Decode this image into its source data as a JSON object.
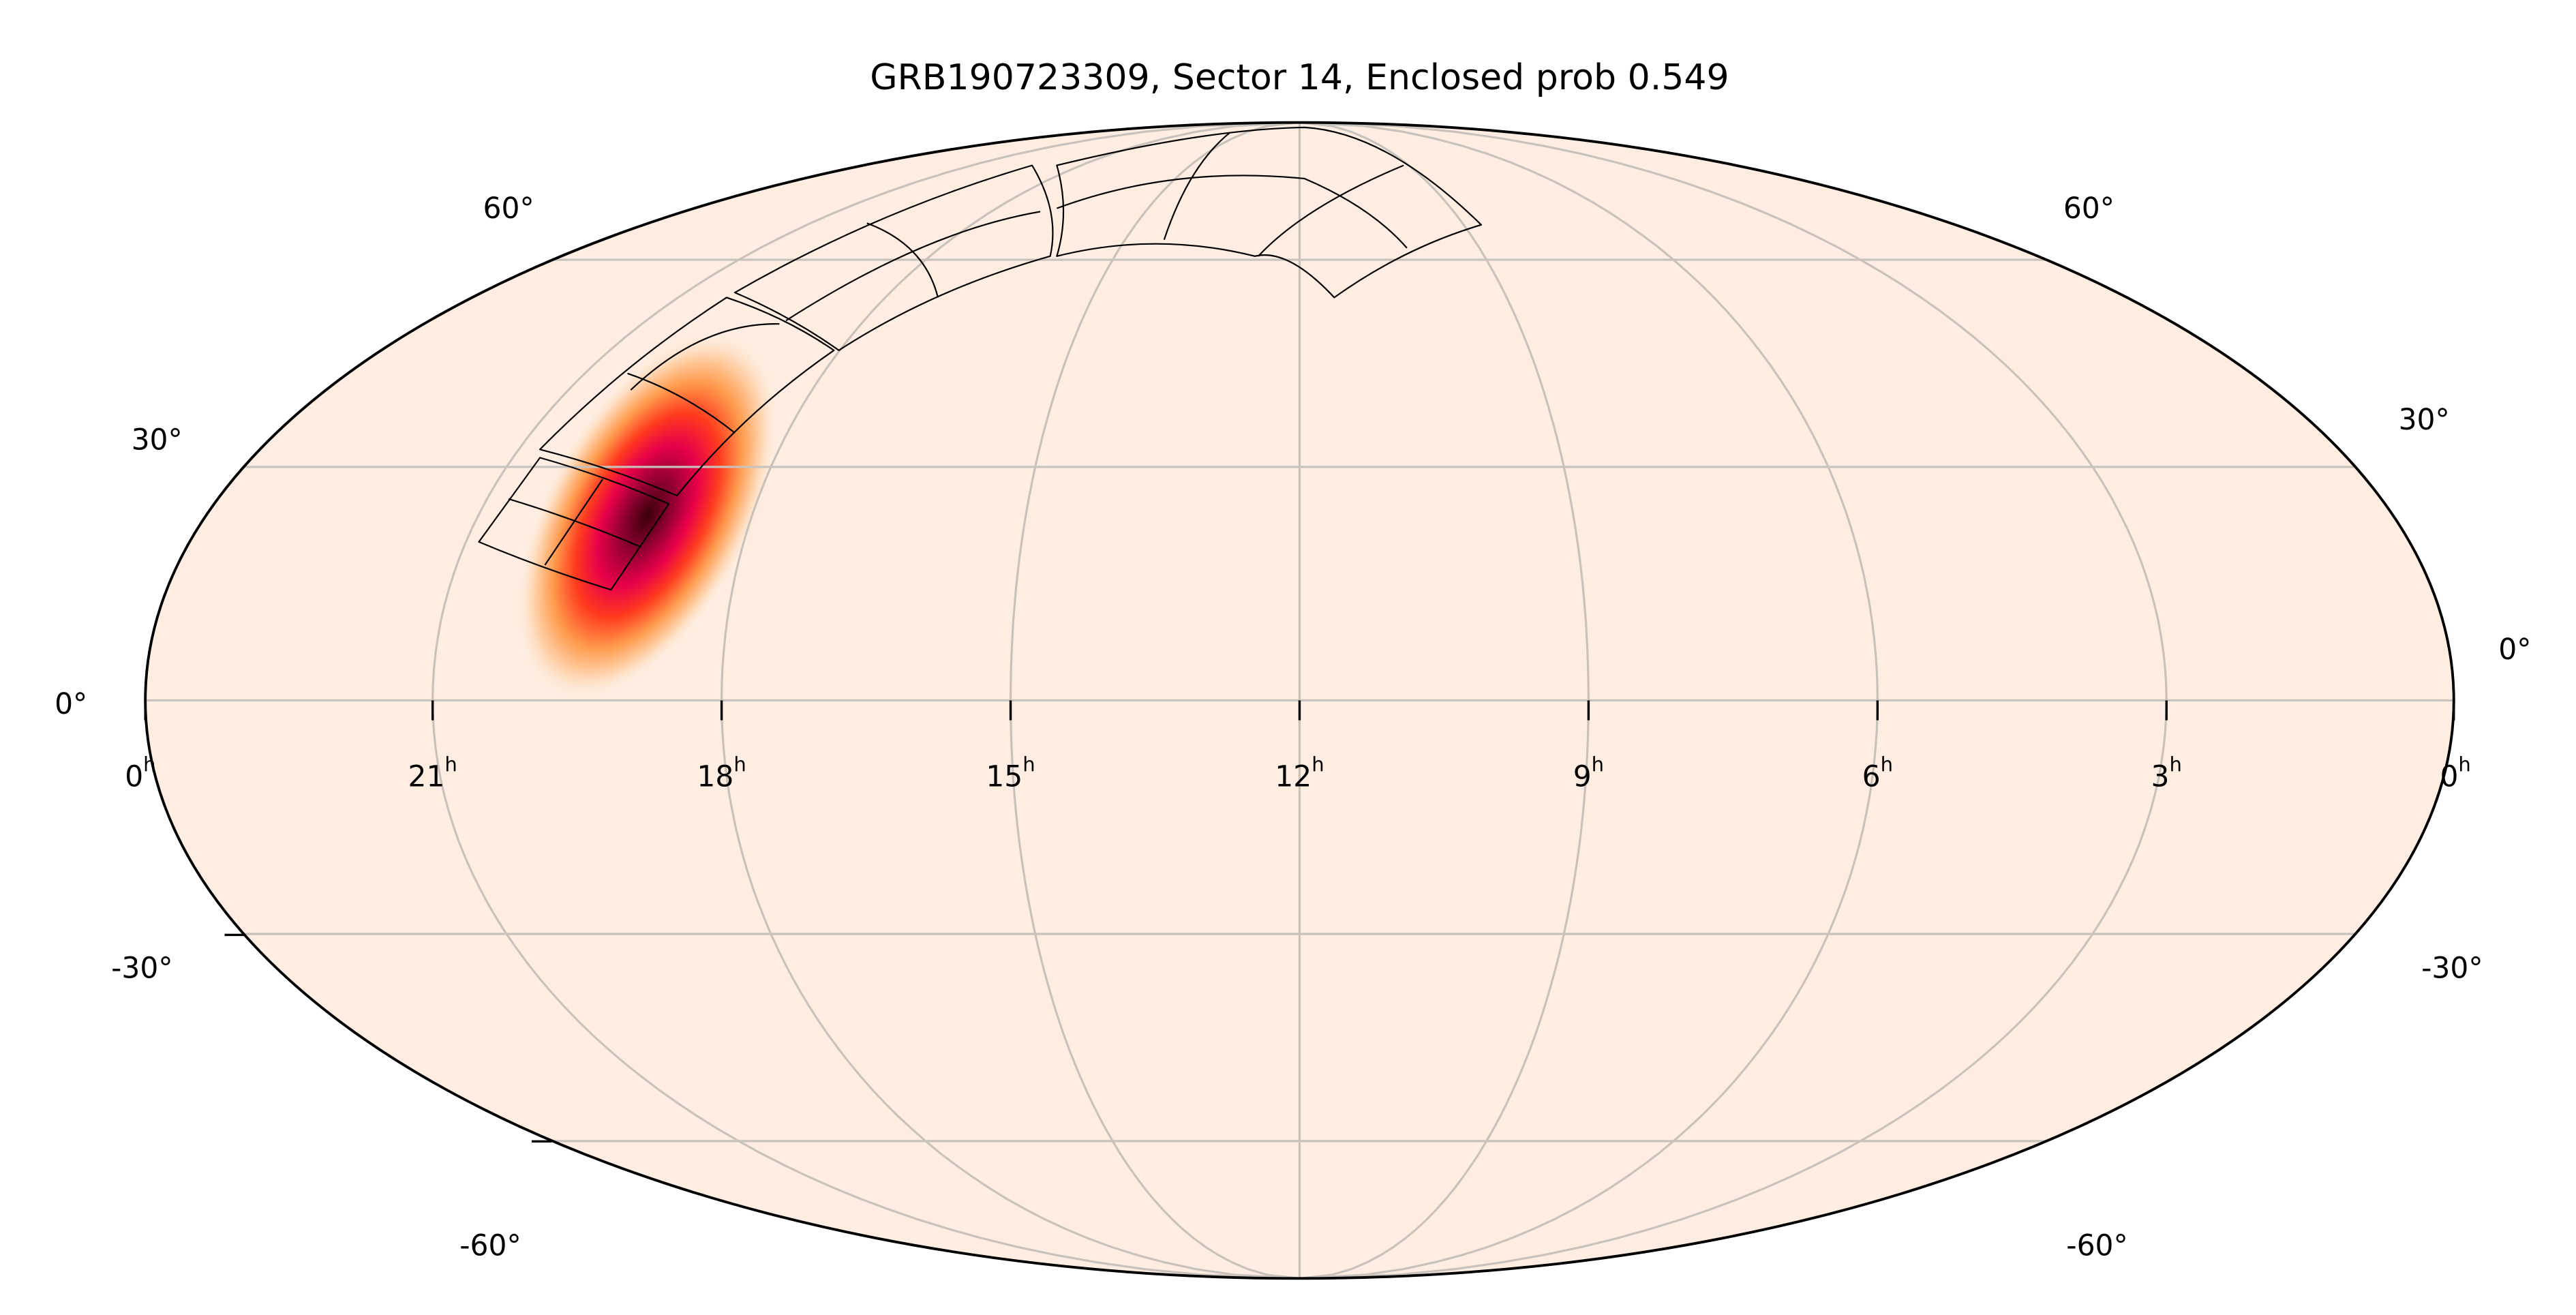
{
  "chart_data": {
    "type": "heatmap",
    "projection": "mollweide",
    "title": "GRB190723309, Sector 14, Enclosed prob 0.549",
    "ra_ticks": [
      "0",
      "21",
      "18",
      "15",
      "12",
      "9",
      "6",
      "3",
      "0"
    ],
    "ra_tick_values_h": [
      24,
      21,
      18,
      15,
      12,
      9,
      6,
      3,
      0
    ],
    "ra_tick_suffix": "h",
    "dec_ticks_left": [
      "60°",
      "30°",
      "0°",
      "-30°",
      "-60°"
    ],
    "dec_ticks_right": [
      "60°",
      "30°",
      "0°",
      "-30°",
      "-60°"
    ],
    "dec_gridlines_deg": [
      60,
      30,
      0,
      -30,
      -60
    ],
    "grid": true,
    "colormap": "hot_r",
    "background_color": "#feede0",
    "probability_peak": {
      "ra_h": 19.3,
      "dec_deg": 22
    },
    "enclosed_probability": 0.549,
    "sector": 14,
    "grb_name": "GRB190723309",
    "footprint": "TESS sector 14, 4 cameras x 4 CCDs"
  }
}
